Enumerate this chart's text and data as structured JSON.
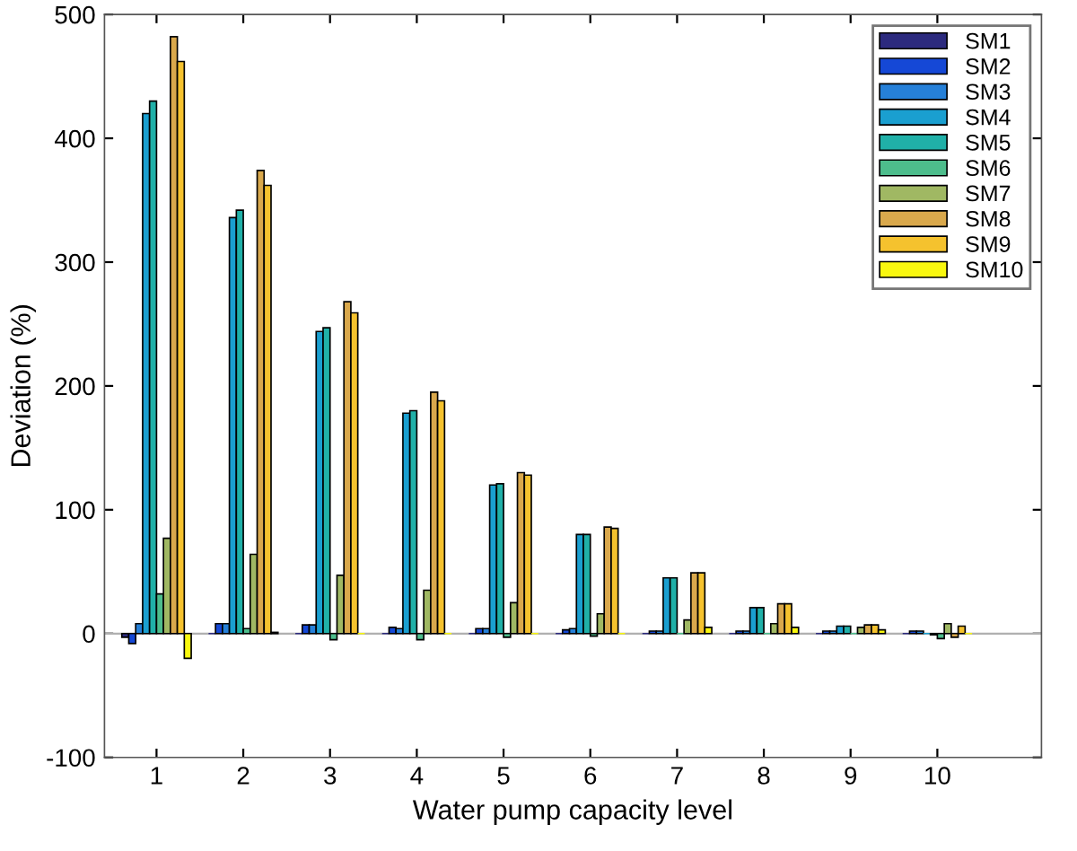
{
  "chart_data": {
    "type": "bar",
    "xlabel": "Water pump capacity level",
    "ylabel": "Deviation (%)",
    "categories": [
      "1",
      "2",
      "3",
      "4",
      "5",
      "6",
      "7",
      "8",
      "9",
      "10"
    ],
    "ylim": [
      -100,
      500
    ],
    "yticks": [
      -100,
      0,
      100,
      200,
      300,
      400,
      500
    ],
    "grid": false,
    "legend": "top right",
    "ref_lines": [
      {
        "axis": "y",
        "value": 0,
        "color": "#b0b0b0"
      }
    ],
    "series": [
      {
        "name": "SM1",
        "color": "#2c2a7e",
        "values": [
          -3,
          0,
          0,
          0,
          0,
          0,
          0,
          0,
          0,
          0
        ]
      },
      {
        "name": "SM2",
        "color": "#1548d6",
        "values": [
          -8,
          8,
          7,
          5,
          4,
          3,
          2,
          2,
          2,
          2
        ]
      },
      {
        "name": "SM3",
        "color": "#2680d8",
        "values": [
          8,
          8,
          7,
          4,
          4,
          4,
          2,
          2,
          2,
          2
        ]
      },
      {
        "name": "SM4",
        "color": "#1a9fd0",
        "values": [
          420,
          336,
          244,
          178,
          120,
          80,
          45,
          21,
          6,
          0
        ]
      },
      {
        "name": "SM5",
        "color": "#20b0a8",
        "values": [
          430,
          342,
          247,
          180,
          121,
          80,
          45,
          21,
          6,
          -1
        ]
      },
      {
        "name": "SM6",
        "color": "#4dbd8c",
        "values": [
          32,
          4,
          -5,
          -5,
          -3,
          -2,
          0,
          0,
          0,
          -4
        ]
      },
      {
        "name": "SM7",
        "color": "#a0b863",
        "values": [
          77,
          64,
          47,
          35,
          25,
          16,
          11,
          8,
          5,
          8
        ]
      },
      {
        "name": "SM8",
        "color": "#d9a84c",
        "values": [
          482,
          374,
          268,
          195,
          130,
          86,
          49,
          24,
          7,
          -3
        ]
      },
      {
        "name": "SM9",
        "color": "#f5c22e",
        "values": [
          462,
          362,
          259,
          188,
          128,
          85,
          49,
          24,
          7,
          6
        ]
      },
      {
        "name": "SM10",
        "color": "#f9f80f",
        "values": [
          -20,
          1,
          0,
          0,
          0,
          0,
          5,
          5,
          3,
          0
        ]
      }
    ]
  }
}
